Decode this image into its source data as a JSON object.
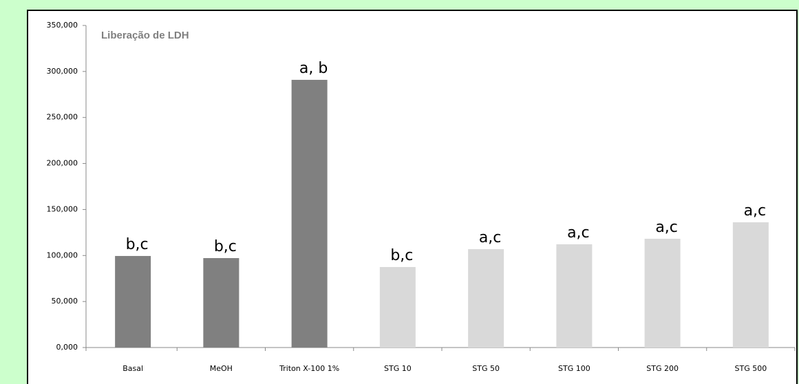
{
  "chart_data": {
    "type": "bar",
    "title": "Liberação de LDH",
    "categories": [
      "Basal",
      "MeOH",
      "Triton X-100 1%",
      "STG 10",
      "STG 50",
      "STG 100",
      "STG 200",
      "STG 500"
    ],
    "values": [
      99.5,
      97.2,
      290.9,
      87.5,
      106.9,
      112.2,
      118.2,
      136.1
    ],
    "colors": [
      "#808080",
      "#808080",
      "#808080",
      "#d9d9d9",
      "#d9d9d9",
      "#d9d9d9",
      "#d9d9d9",
      "#d9d9d9"
    ],
    "annotations": [
      "b,c",
      "b,c",
      "a, b",
      "b,c",
      "a,c",
      "a,c",
      "a,c",
      "a,c"
    ],
    "ylim": [
      0,
      350
    ],
    "yticks": [
      {
        "value": 0,
        "label": "0,000"
      },
      {
        "value": 50,
        "label": "50,000"
      },
      {
        "value": 100,
        "label": "100,000"
      },
      {
        "value": 150,
        "label": "150,000"
      },
      {
        "value": 200,
        "label": "200,000"
      },
      {
        "value": 250,
        "label": "250,000"
      },
      {
        "value": 300,
        "label": "300,000"
      },
      {
        "value": 350,
        "label": "350,000"
      }
    ],
    "grid": false
  }
}
